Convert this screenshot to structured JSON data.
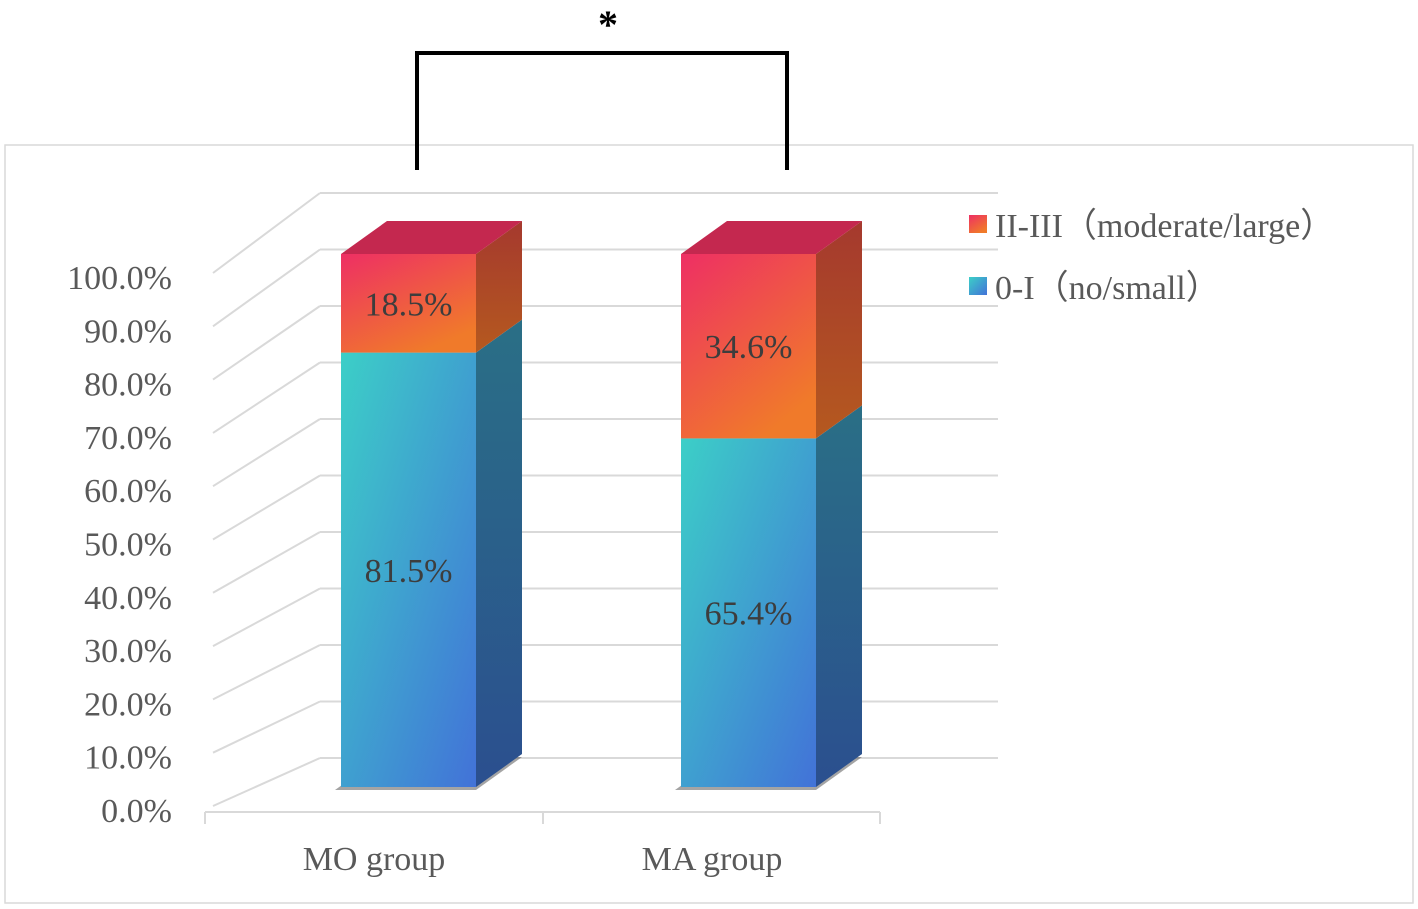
{
  "chart_data": {
    "type": "bar",
    "stacked": true,
    "three_d": true,
    "categories": [
      "MO group",
      "MA group"
    ],
    "series": [
      {
        "name": "0-I（no/small）",
        "values": [
          81.5,
          65.4
        ],
        "labels": [
          "81.5%",
          "65.4%"
        ]
      },
      {
        "name": "II-III（moderate/large）",
        "values": [
          18.5,
          34.6
        ],
        "labels": [
          "18.5%",
          "34.6%"
        ]
      }
    ],
    "ylim": [
      0,
      100
    ],
    "yticks": [
      "0.0%",
      "10.0%",
      "20.0%",
      "30.0%",
      "40.0%",
      "50.0%",
      "60.0%",
      "70.0%",
      "80.0%",
      "90.0%",
      "100.0%"
    ],
    "grid": true,
    "legend_position": "top-right",
    "significance": {
      "between": [
        "MO group",
        "MA group"
      ],
      "label": "*"
    },
    "colors": {
      "low_front_top": "#3ccfc7",
      "low_front_bottom": "#4272d8",
      "low_side": "#2b5592",
      "high_front_top": "#ee2f64",
      "high_front_bottom": "#f07a2a",
      "high_side": "#9c4a2a",
      "top_face": "#c4284f",
      "grid": "#d9d9d9",
      "axis_text": "#595959",
      "bracket": "#000000"
    }
  }
}
